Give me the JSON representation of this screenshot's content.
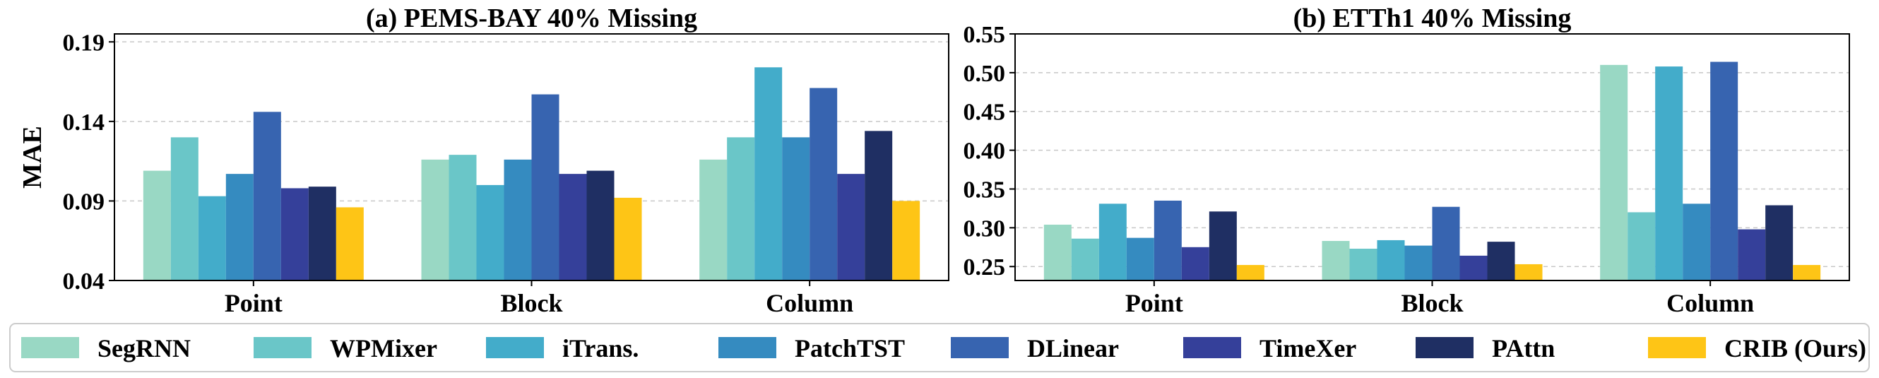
{
  "chart_data": [
    {
      "type": "bar",
      "title": "(a) PEMS-BAY 40% Missing",
      "xlabel": "",
      "ylabel": "MAE",
      "ylim": [
        0.04,
        0.195
      ],
      "yticks": [
        "0.04",
        "0.09",
        "0.14",
        "0.19"
      ],
      "categories": [
        "Point",
        "Block",
        "Column"
      ],
      "grid": true,
      "series": [
        {
          "name": "SegRNN",
          "values": [
            0.109,
            0.116,
            0.116
          ]
        },
        {
          "name": "WPMixer",
          "values": [
            0.13,
            0.119,
            0.13
          ]
        },
        {
          "name": "iTrans.",
          "values": [
            0.093,
            0.1,
            0.174
          ]
        },
        {
          "name": "PatchTST",
          "values": [
            0.107,
            0.116,
            0.13
          ]
        },
        {
          "name": "DLinear",
          "values": [
            0.146,
            0.157,
            0.161
          ]
        },
        {
          "name": "TimeXer",
          "values": [
            0.098,
            0.107,
            0.107
          ]
        },
        {
          "name": "PAttn",
          "values": [
            0.099,
            0.109,
            0.134
          ]
        },
        {
          "name": "CRIB (Ours)",
          "values": [
            0.086,
            0.092,
            0.09
          ]
        }
      ]
    },
    {
      "type": "bar",
      "title": "(b) ETTh1 40% Missing",
      "xlabel": "",
      "ylabel": "",
      "ylim": [
        0.232,
        0.55
      ],
      "yticks": [
        "0.25",
        "0.30",
        "0.35",
        "0.40",
        "0.45",
        "0.50",
        "0.55"
      ],
      "categories": [
        "Point",
        "Block",
        "Column"
      ],
      "grid": true,
      "series": [
        {
          "name": "SegRNN",
          "values": [
            0.304,
            0.283,
            0.51
          ]
        },
        {
          "name": "WPMixer",
          "values": [
            0.286,
            0.273,
            0.32
          ]
        },
        {
          "name": "iTrans.",
          "values": [
            0.331,
            0.284,
            0.508
          ]
        },
        {
          "name": "PatchTST",
          "values": [
            0.287,
            0.277,
            0.331
          ]
        },
        {
          "name": "DLinear",
          "values": [
            0.335,
            0.327,
            0.514
          ]
        },
        {
          "name": "TimeXer",
          "values": [
            0.275,
            0.264,
            0.298
          ]
        },
        {
          "name": "PAttn",
          "values": [
            0.321,
            0.282,
            0.329
          ]
        },
        {
          "name": "CRIB (Ours)",
          "values": [
            0.252,
            0.253,
            0.252
          ]
        }
      ]
    }
  ],
  "legend": {
    "placement": "bottom",
    "entries": [
      "SegRNN",
      "WPMixer",
      "iTrans.",
      "PatchTST",
      "DLinear",
      "TimeXer",
      "PAttn",
      "CRIB (Ours)"
    ]
  },
  "colors": [
    "#99d8c4",
    "#6ac6c8",
    "#43acca",
    "#358bc0",
    "#3764b0",
    "#35409a",
    "#1f2f63",
    "#fec516"
  ]
}
